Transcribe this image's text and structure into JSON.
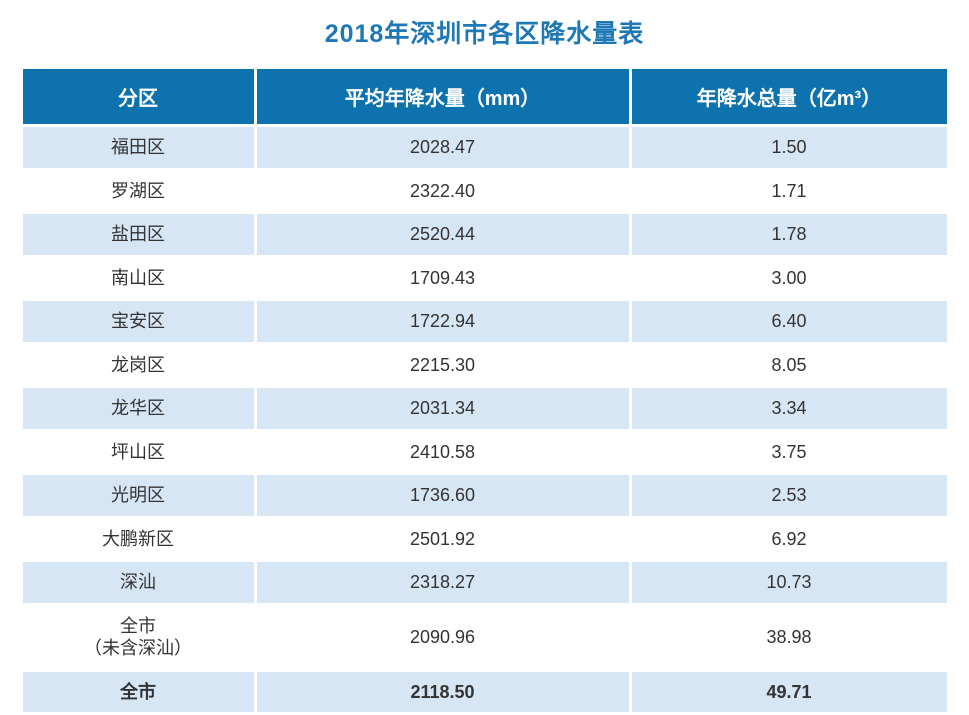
{
  "title": "2018年深圳市各区降水量表",
  "colors": {
    "title_blue": "#1e78b6",
    "header_bg": "#0e72ae",
    "header_text": "#ffffff",
    "stripe_row_bg": "#d7e6f4",
    "plain_row_bg": "#ffffff",
    "body_text": "#333333"
  },
  "chart_data": {
    "type": "table",
    "title": "2018年深圳市各区降水量表",
    "columns": [
      "分区",
      "平均年降水量（mm）",
      "年降水总量（亿m³）"
    ],
    "rows": [
      {
        "district": "福田区",
        "avg_mm": "2028.47",
        "total_100m_m3": "1.50"
      },
      {
        "district": "罗湖区",
        "avg_mm": "2322.40",
        "total_100m_m3": "1.71"
      },
      {
        "district": "盐田区",
        "avg_mm": "2520.44",
        "total_100m_m3": "1.78"
      },
      {
        "district": "南山区",
        "avg_mm": "1709.43",
        "total_100m_m3": "3.00"
      },
      {
        "district": "宝安区",
        "avg_mm": "1722.94",
        "total_100m_m3": "6.40"
      },
      {
        "district": "龙岗区",
        "avg_mm": "2215.30",
        "total_100m_m3": "8.05"
      },
      {
        "district": "龙华区",
        "avg_mm": "2031.34",
        "total_100m_m3": "3.34"
      },
      {
        "district": "坪山区",
        "avg_mm": "2410.58",
        "total_100m_m3": "3.75"
      },
      {
        "district": "光明区",
        "avg_mm": "1736.60",
        "total_100m_m3": "2.53"
      },
      {
        "district": "大鹏新区",
        "avg_mm": "2501.92",
        "total_100m_m3": "6.92"
      },
      {
        "district": "深汕",
        "avg_mm": "2318.27",
        "total_100m_m3": "10.73"
      },
      {
        "district": "全市\n（未含深汕）",
        "avg_mm": "2090.96",
        "total_100m_m3": "38.98"
      },
      {
        "district": "全市",
        "avg_mm": "2118.50",
        "total_100m_m3": "49.71"
      }
    ]
  }
}
